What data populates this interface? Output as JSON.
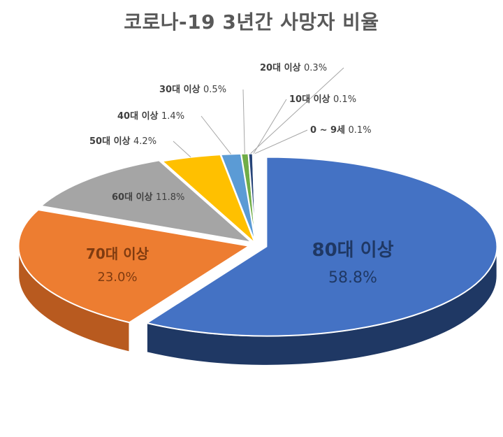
{
  "chart_data": {
    "type": "pie",
    "title": "코로나-19 3년간 사망자 비율",
    "slices": [
      {
        "category": "80대 이상",
        "value": 58.8,
        "value_label": "58.8%",
        "color": "#4472C4",
        "side_color": "#1F3864",
        "label_style": "inside-large"
      },
      {
        "category": "70대 이상",
        "value": 23.0,
        "value_label": "23.0%",
        "color": "#ED7D31",
        "side_color": "#B85A1F",
        "label_style": "inside-large"
      },
      {
        "category": "60대 이상",
        "value": 11.8,
        "value_label": "11.8%",
        "color": "#A5A5A5",
        "side_color": "#7A7A7A",
        "label_style": "inside-small"
      },
      {
        "category": "50대 이상",
        "value": 4.2,
        "value_label": "4.2%",
        "color": "#FFC000",
        "side_color": "#C49000",
        "label_style": "callout"
      },
      {
        "category": "40대 이상",
        "value": 1.4,
        "value_label": "1.4%",
        "color": "#5B9BD5",
        "side_color": "#2E6DA4",
        "label_style": "callout"
      },
      {
        "category": "30대 이상",
        "value": 0.5,
        "value_label": "0.5%",
        "color": "#70AD47",
        "side_color": "#4E7A31",
        "label_style": "callout"
      },
      {
        "category": "20대 이상",
        "value": 0.3,
        "value_label": "0.3%",
        "color": "#264478",
        "side_color": "#17294A",
        "label_style": "callout"
      },
      {
        "category": "10대 이상",
        "value": 0.1,
        "value_label": "0.1%",
        "color": "#9E480E",
        "side_color": "#6B300A",
        "label_style": "callout"
      },
      {
        "category": "0 ~ 9세",
        "value": 0.1,
        "value_label": "0.1%",
        "color": "#636363",
        "side_color": "#404040",
        "label_style": "callout"
      }
    ],
    "style": "3d-exploded",
    "legend": "none"
  }
}
